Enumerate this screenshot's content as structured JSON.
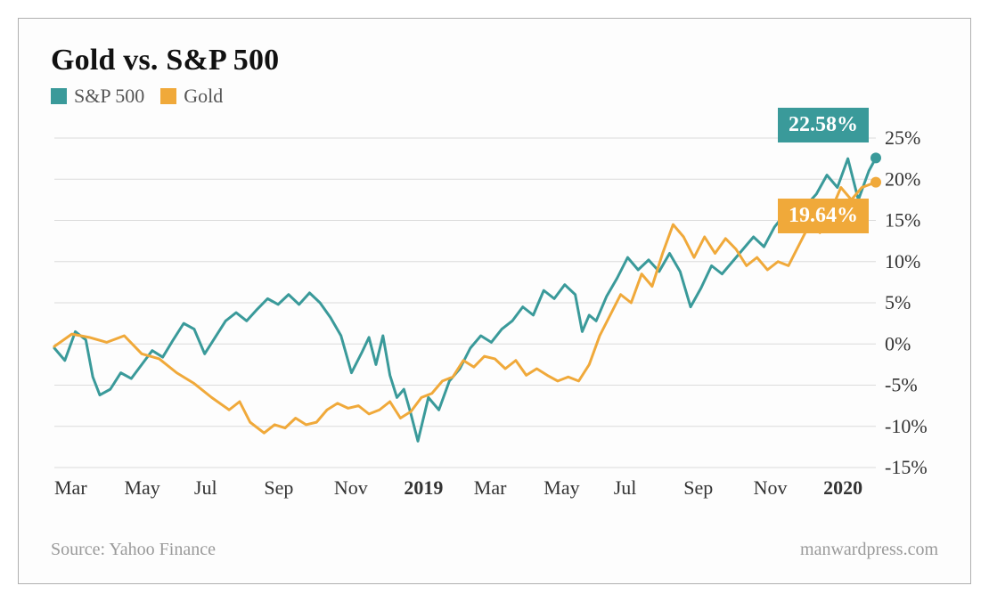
{
  "title": "Gold vs. S&P 500",
  "title_fontsize": 34,
  "title_color": "#111111",
  "legend": {
    "items": [
      {
        "label": "S&P 500",
        "color": "#3a9a9a"
      },
      {
        "label": "Gold",
        "color": "#f0a93a"
      }
    ],
    "fontsize": 22,
    "text_color": "#555555"
  },
  "chart": {
    "type": "line",
    "background_color": "#fdfdfd",
    "grid_color": "#dcdcdc",
    "axis_text_color": "#333333",
    "axis_fontsize": 22,
    "line_width": 3,
    "x_labels": [
      {
        "t": 0,
        "text": "Mar",
        "bold": false
      },
      {
        "t": 2,
        "text": "May",
        "bold": false
      },
      {
        "t": 4,
        "text": "Jul",
        "bold": false
      },
      {
        "t": 6,
        "text": "Sep",
        "bold": false
      },
      {
        "t": 8,
        "text": "Nov",
        "bold": false
      },
      {
        "t": 10,
        "text": "2019",
        "bold": true
      },
      {
        "t": 12,
        "text": "Mar",
        "bold": false
      },
      {
        "t": 14,
        "text": "May",
        "bold": false
      },
      {
        "t": 16,
        "text": "Jul",
        "bold": false
      },
      {
        "t": 18,
        "text": "Sep",
        "bold": false
      },
      {
        "t": 20,
        "text": "Nov",
        "bold": false
      },
      {
        "t": 22,
        "text": "2020",
        "bold": true
      }
    ],
    "x_domain": [
      0,
      23.5
    ],
    "y_domain": [
      -15,
      25
    ],
    "y_ticks": [
      -15,
      -10,
      -5,
      0,
      5,
      10,
      15,
      20,
      25
    ],
    "y_tick_suffix": "%",
    "series": [
      {
        "name": "S&P 500",
        "color": "#3a9a9a",
        "end_marker": true,
        "callout": {
          "text": "22.58%",
          "bg": "#3a9a9a",
          "pos": "top"
        },
        "points": [
          [
            0,
            -0.5
          ],
          [
            0.3,
            -2
          ],
          [
            0.6,
            1.5
          ],
          [
            0.9,
            0.5
          ],
          [
            1.1,
            -4
          ],
          [
            1.3,
            -6.2
          ],
          [
            1.6,
            -5.5
          ],
          [
            1.9,
            -3.5
          ],
          [
            2.2,
            -4.2
          ],
          [
            2.5,
            -2.5
          ],
          [
            2.8,
            -0.8
          ],
          [
            3.1,
            -1.6
          ],
          [
            3.4,
            0.5
          ],
          [
            3.7,
            2.5
          ],
          [
            4.0,
            1.8
          ],
          [
            4.3,
            -1.2
          ],
          [
            4.6,
            0.8
          ],
          [
            4.9,
            2.8
          ],
          [
            5.2,
            3.8
          ],
          [
            5.5,
            2.8
          ],
          [
            5.8,
            4.2
          ],
          [
            6.1,
            5.5
          ],
          [
            6.4,
            4.8
          ],
          [
            6.7,
            6.0
          ],
          [
            7.0,
            4.8
          ],
          [
            7.3,
            6.2
          ],
          [
            7.6,
            5.0
          ],
          [
            7.9,
            3.2
          ],
          [
            8.2,
            1.0
          ],
          [
            8.5,
            -3.5
          ],
          [
            8.8,
            -1.0
          ],
          [
            9.0,
            0.8
          ],
          [
            9.2,
            -2.5
          ],
          [
            9.4,
            1.0
          ],
          [
            9.6,
            -3.8
          ],
          [
            9.8,
            -6.5
          ],
          [
            10.0,
            -5.5
          ],
          [
            10.2,
            -8.5
          ],
          [
            10.4,
            -11.8
          ],
          [
            10.7,
            -6.5
          ],
          [
            11.0,
            -8.0
          ],
          [
            11.3,
            -4.5
          ],
          [
            11.6,
            -3.0
          ],
          [
            11.9,
            -0.5
          ],
          [
            12.2,
            1.0
          ],
          [
            12.5,
            0.2
          ],
          [
            12.8,
            1.8
          ],
          [
            13.1,
            2.8
          ],
          [
            13.4,
            4.5
          ],
          [
            13.7,
            3.5
          ],
          [
            14.0,
            6.5
          ],
          [
            14.3,
            5.5
          ],
          [
            14.6,
            7.2
          ],
          [
            14.9,
            6.0
          ],
          [
            15.1,
            1.5
          ],
          [
            15.3,
            3.5
          ],
          [
            15.5,
            2.8
          ],
          [
            15.8,
            5.8
          ],
          [
            16.1,
            8.0
          ],
          [
            16.4,
            10.5
          ],
          [
            16.7,
            9.0
          ],
          [
            17.0,
            10.2
          ],
          [
            17.3,
            8.8
          ],
          [
            17.6,
            11.0
          ],
          [
            17.9,
            8.8
          ],
          [
            18.2,
            4.5
          ],
          [
            18.5,
            6.8
          ],
          [
            18.8,
            9.5
          ],
          [
            19.1,
            8.5
          ],
          [
            19.4,
            10.0
          ],
          [
            19.7,
            11.5
          ],
          [
            20.0,
            13.0
          ],
          [
            20.3,
            11.8
          ],
          [
            20.6,
            14.2
          ],
          [
            20.9,
            15.8
          ],
          [
            21.2,
            14.8
          ],
          [
            21.5,
            16.8
          ],
          [
            21.8,
            18.2
          ],
          [
            22.1,
            20.5
          ],
          [
            22.4,
            19.0
          ],
          [
            22.7,
            22.5
          ],
          [
            23.0,
            17.5
          ],
          [
            23.3,
            21.0
          ],
          [
            23.5,
            22.58
          ]
        ]
      },
      {
        "name": "Gold",
        "color": "#f0a93a",
        "end_marker": true,
        "callout": {
          "text": "19.64%",
          "bg": "#f0a93a",
          "pos": "bottom"
        },
        "points": [
          [
            0,
            -0.3
          ],
          [
            0.5,
            1.2
          ],
          [
            1.0,
            0.8
          ],
          [
            1.5,
            0.2
          ],
          [
            2.0,
            1.0
          ],
          [
            2.5,
            -1.2
          ],
          [
            3.0,
            -1.8
          ],
          [
            3.5,
            -3.5
          ],
          [
            4.0,
            -4.8
          ],
          [
            4.5,
            -6.5
          ],
          [
            5.0,
            -8.0
          ],
          [
            5.3,
            -7.0
          ],
          [
            5.6,
            -9.5
          ],
          [
            6.0,
            -10.8
          ],
          [
            6.3,
            -9.8
          ],
          [
            6.6,
            -10.2
          ],
          [
            6.9,
            -9.0
          ],
          [
            7.2,
            -9.8
          ],
          [
            7.5,
            -9.5
          ],
          [
            7.8,
            -8.0
          ],
          [
            8.1,
            -7.2
          ],
          [
            8.4,
            -7.8
          ],
          [
            8.7,
            -7.5
          ],
          [
            9.0,
            -8.5
          ],
          [
            9.3,
            -8.0
          ],
          [
            9.6,
            -7.0
          ],
          [
            9.9,
            -9.0
          ],
          [
            10.2,
            -8.2
          ],
          [
            10.5,
            -6.5
          ],
          [
            10.8,
            -6.0
          ],
          [
            11.1,
            -4.5
          ],
          [
            11.4,
            -4.0
          ],
          [
            11.7,
            -2.0
          ],
          [
            12.0,
            -2.8
          ],
          [
            12.3,
            -1.5
          ],
          [
            12.6,
            -1.8
          ],
          [
            12.9,
            -3.0
          ],
          [
            13.2,
            -2.0
          ],
          [
            13.5,
            -3.8
          ],
          [
            13.8,
            -3.0
          ],
          [
            14.1,
            -3.8
          ],
          [
            14.4,
            -4.5
          ],
          [
            14.7,
            -4.0
          ],
          [
            15.0,
            -4.5
          ],
          [
            15.3,
            -2.5
          ],
          [
            15.6,
            1.0
          ],
          [
            15.9,
            3.5
          ],
          [
            16.2,
            6.0
          ],
          [
            16.5,
            5.0
          ],
          [
            16.8,
            8.5
          ],
          [
            17.1,
            7.0
          ],
          [
            17.4,
            11.0
          ],
          [
            17.7,
            14.5
          ],
          [
            18.0,
            13.0
          ],
          [
            18.3,
            10.5
          ],
          [
            18.6,
            13.0
          ],
          [
            18.9,
            11.0
          ],
          [
            19.2,
            12.8
          ],
          [
            19.5,
            11.5
          ],
          [
            19.8,
            9.5
          ],
          [
            20.1,
            10.5
          ],
          [
            20.4,
            9.0
          ],
          [
            20.7,
            10.0
          ],
          [
            21.0,
            9.5
          ],
          [
            21.3,
            12.0
          ],
          [
            21.6,
            14.5
          ],
          [
            21.9,
            13.5
          ],
          [
            22.2,
            16.0
          ],
          [
            22.5,
            19.0
          ],
          [
            22.8,
            17.5
          ],
          [
            23.1,
            19.0
          ],
          [
            23.5,
            19.64
          ]
        ]
      }
    ]
  },
  "footer": {
    "source": "Source: Yahoo Finance",
    "attribution": "manwardpress.com",
    "fontsize": 20,
    "color": "#9a9a9a"
  }
}
